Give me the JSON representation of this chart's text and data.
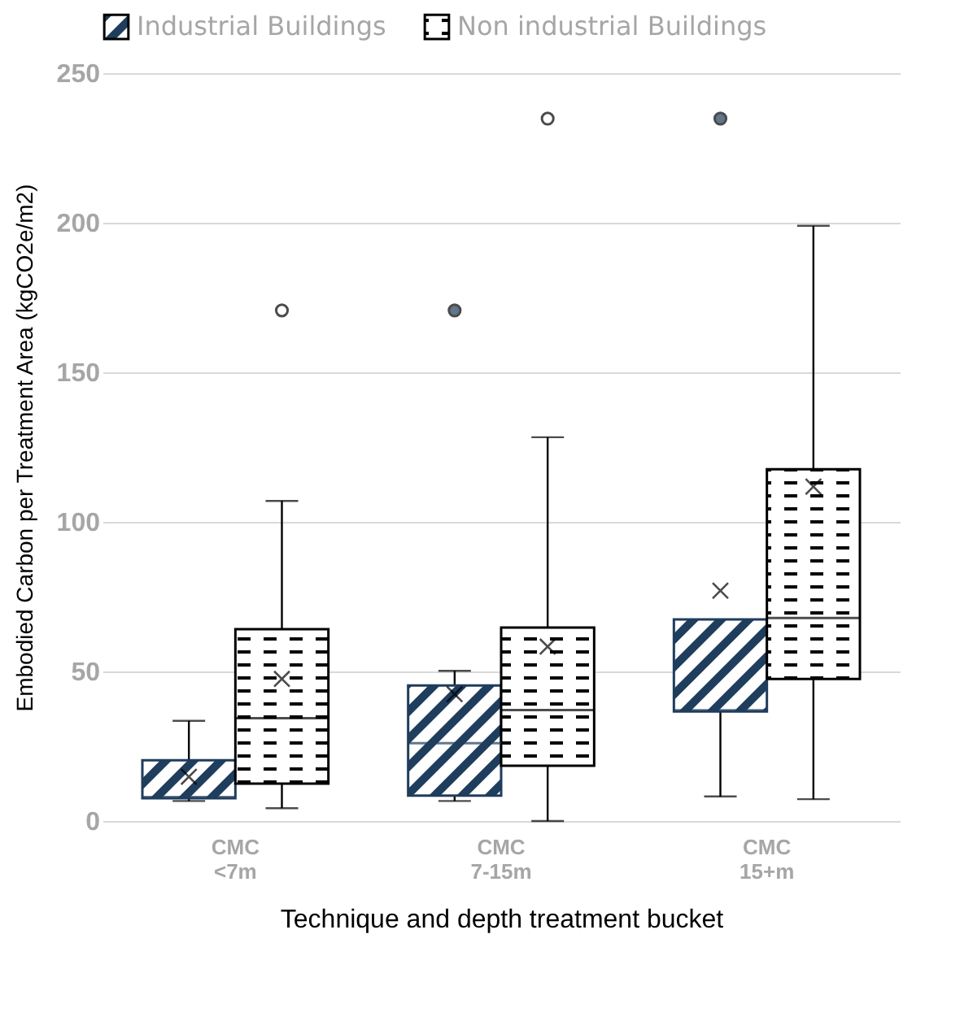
{
  "chart_data": {
    "type": "box",
    "xlabel": "Technique and depth treatment bucket",
    "ylabel": "Embodied Carbon per Treatment Area (kgCO2e/m2)",
    "categories": [
      "CMC <7m",
      "CMC 7-15m",
      "CMC 15+m"
    ],
    "series": [
      {
        "name": "Industrial Buildings",
        "color": "#1f3d5c",
        "boxes": [
          {
            "low": 6.7,
            "q1": 7.6,
            "median": 8,
            "q3": 20.3,
            "high": 33.5,
            "mean": 14.8
          },
          {
            "low": 6.7,
            "q1": 8.5,
            "median": 26,
            "q3": 45.3,
            "high": 50.2,
            "mean": 42.4,
            "outliers": [
              170.7
            ]
          },
          {
            "low": 8.2,
            "q1": 36.6,
            "median": 37,
            "q3": 67.4,
            "high": 67.4,
            "mean": 77,
            "outliers": [
              234.8
            ]
          }
        ]
      },
      {
        "name": "Non industrial Buildings",
        "color": "#000000",
        "boxes": [
          {
            "low": 4.3,
            "q1": 12.5,
            "median": 34.4,
            "q3": 64.1,
            "high": 107,
            "mean": 47.5,
            "outliers": [
              170.7
            ]
          },
          {
            "low": 0,
            "q1": 18.5,
            "median": 37.1,
            "q3": 64.7,
            "high": 128.3,
            "mean": 58.3,
            "outliers": [
              234.8
            ]
          },
          {
            "low": 7.3,
            "q1": 47.5,
            "median": 67.9,
            "q3": 117.6,
            "high": 199,
            "mean": 111.8
          }
        ]
      }
    ],
    "ylim": [
      0,
      250
    ],
    "yticks": [
      0,
      50,
      100,
      150,
      200,
      250
    ],
    "grid": "y",
    "legend": "top",
    "marker": "cross"
  }
}
